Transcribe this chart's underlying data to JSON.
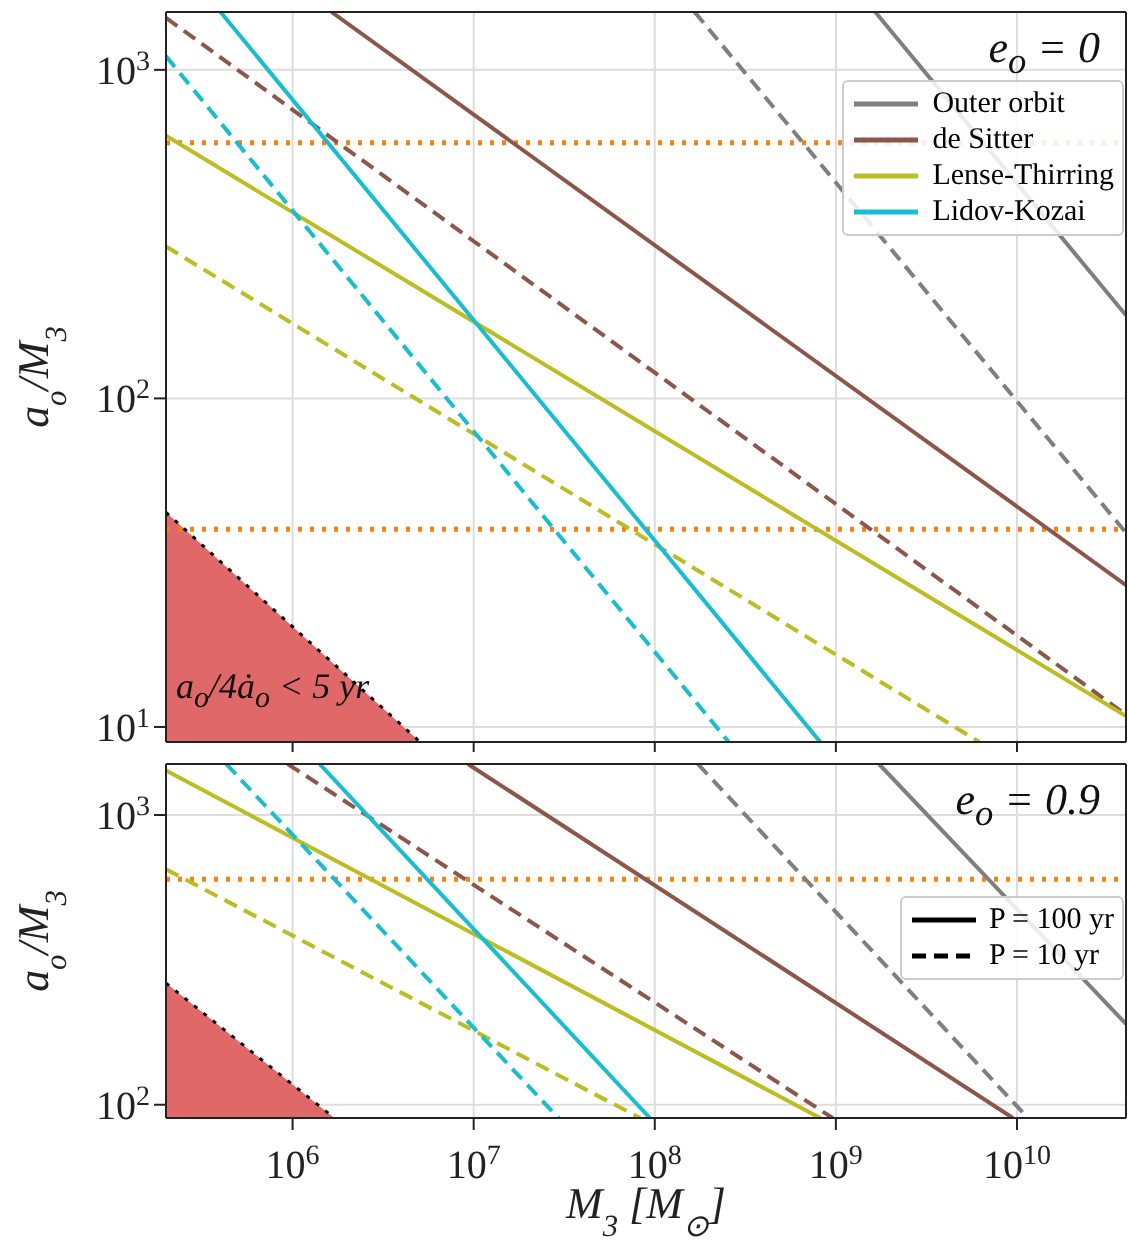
{
  "chart_data": [
    {
      "type": "line",
      "ylabel": "a$_{o}$/M$_{3}$",
      "log": "xy",
      "grid": true,
      "legend": "top right",
      "tick_labels": "y",
      "xlim": [
        200000,
        40000000000
      ],
      "ylim": [
        9,
        1500
      ],
      "xticks": [
        {
          "value": 1000000,
          "label": null
        },
        {
          "value": 10000000,
          "label": null
        },
        {
          "value": 100000000,
          "label": null
        },
        {
          "value": 1000000000,
          "label": null
        },
        {
          "value": 10000000000,
          "label": null
        }
      ],
      "yticks": [
        {
          "value": 10,
          "label": "10$^{1}$"
        },
        {
          "value": 100,
          "label": "10$^{2}$"
        },
        {
          "value": 1000,
          "label": "10$^{3}$"
        }
      ],
      "annotations": [
        "e$_{o}$ = 0",
        "a$_{o}$/4ȧ$_{o}$ < 5 yr"
      ],
      "ref_lines": [
        {
          "axis": "y",
          "value": 600,
          "color": "#ff7f0e",
          "line_style": "dotted"
        },
        {
          "axis": "y",
          "value": 40,
          "color": "#ff7f0e",
          "line_style": "dotted"
        }
      ],
      "series": [
        {
          "type": "area",
          "color": "#e06868",
          "x": [
            200000,
            5070000
          ],
          "values": [
            45,
            9
          ],
          "line_style": "dotted"
        },
        {
          "name": "Outer orbit",
          "color": "#7f7f7f",
          "line_style": "solid",
          "x": [
            1650000000,
            40000000000
          ],
          "values": [
            1500,
            179
          ]
        },
        {
          "color": "#7f7f7f",
          "line_style": "dashed",
          "x": [
            166000000,
            40000000000
          ],
          "values": [
            1500,
            39
          ]
        },
        {
          "name": "de Sitter",
          "color": "#8c564b",
          "line_style": "solid",
          "x": [
            1640000,
            40000000000
          ],
          "values": [
            1500,
            27
          ]
        },
        {
          "color": "#8c564b",
          "line_style": "dashed",
          "x": [
            200000,
            40000000000
          ],
          "values": [
            1440,
            10.9
          ]
        },
        {
          "name": "Lense-Thirring",
          "color": "#bcbd22",
          "line_style": "solid",
          "x": [
            200000,
            40000000000
          ],
          "values": [
            630,
            10.8
          ]
        },
        {
          "color": "#bcbd22",
          "line_style": "dashed",
          "x": [
            200000,
            6200000000
          ],
          "values": [
            290,
            9
          ]
        },
        {
          "name": "Lidov-Kozai",
          "color": "#17becf",
          "line_style": "solid",
          "x": [
            400000,
            820000000
          ],
          "values": [
            1500,
            9
          ]
        },
        {
          "color": "#17becf",
          "line_style": "dashed",
          "x": [
            200000,
            256000000
          ],
          "values": [
            1100,
            9
          ]
        }
      ]
    },
    {
      "type": "line",
      "xlabel": "M$_{3}$ [M$_{⊙}$]",
      "ylabel": "a$_{o}$/M$_{3}$",
      "log": "xy",
      "grid": true,
      "legend": "right",
      "xlim": [
        200000,
        40000000000
      ],
      "ylim": [
        90,
        1500
      ],
      "xticks": [
        {
          "value": 1000000,
          "label": "10$^{6}$"
        },
        {
          "value": 10000000,
          "label": "10$^{7}$"
        },
        {
          "value": 100000000,
          "label": "10$^{8}$"
        },
        {
          "value": 1000000000,
          "label": "10$^{9}$"
        },
        {
          "value": 10000000000,
          "label": "10$^{10}$"
        }
      ],
      "yticks": [
        {
          "value": 100,
          "label": "10$^{2}$"
        },
        {
          "value": 1000,
          "label": "10$^{3}$"
        }
      ],
      "annotations": [
        "e$_{o}$ = 0.9"
      ],
      "ref_lines": [
        {
          "axis": "y",
          "value": 600,
          "color": "#ff7f0e",
          "line_style": "dotted"
        }
      ],
      "series": [
        {
          "type": "area",
          "color": "#e06868",
          "x": [
            200000,
            1700000
          ],
          "values": [
            263,
            90
          ],
          "line_style": "dotted"
        },
        {
          "color": "#7f7f7f",
          "line_style": "solid",
          "x": [
            1730000000,
            40000000000
          ],
          "values": [
            1500,
            190
          ]
        },
        {
          "color": "#7f7f7f",
          "line_style": "dashed",
          "x": [
            173000000,
            11500000000
          ],
          "values": [
            1500,
            90
          ]
        },
        {
          "color": "#8c564b",
          "line_style": "solid",
          "x": [
            9300000,
            9500000000
          ],
          "values": [
            1500,
            90
          ]
        },
        {
          "color": "#8c564b",
          "line_style": "dashed",
          "x": [
            940000,
            960000000
          ],
          "values": [
            1500,
            90
          ]
        },
        {
          "color": "#bcbd22",
          "line_style": "solid",
          "x": [
            200000,
            820000000
          ],
          "values": [
            1425,
            90
          ]
        },
        {
          "color": "#bcbd22",
          "line_style": "dashed",
          "x": [
            200000,
            83000000
          ],
          "values": [
            650,
            90
          ]
        },
        {
          "color": "#17becf",
          "line_style": "solid",
          "x": [
            1410000,
            94000000
          ],
          "values": [
            1500,
            90
          ]
        },
        {
          "color": "#17becf",
          "line_style": "dashed",
          "x": [
            430000,
            29400000
          ],
          "values": [
            1500,
            90
          ]
        },
        {
          "name": "P = 100 yr",
          "color": "#000000",
          "line_style": "solid"
        },
        {
          "name": "P = 10 yr",
          "color": "#000000",
          "line_style": "dashed"
        }
      ]
    }
  ]
}
